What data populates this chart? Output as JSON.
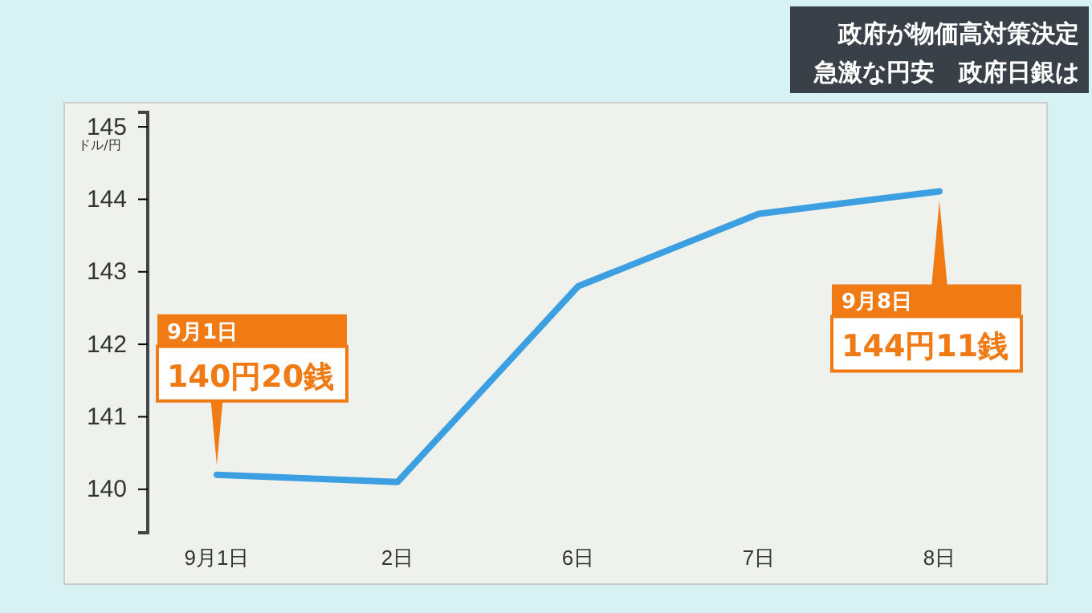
{
  "chart_data": {
    "type": "line",
    "title": "政府が物価高対策決定",
    "subtitle": "急激な円安　政府日銀は",
    "ylabel": "ドル/円",
    "categories": [
      "9月1日",
      "2日",
      "6日",
      "7日",
      "8日"
    ],
    "series": [
      {
        "color": "#3b9fe2",
        "values": [
          140.2,
          140.1,
          142.8,
          143.8,
          144.11
        ]
      }
    ],
    "ylim": [
      139.4,
      145.2
    ],
    "yticks": [
      140,
      141,
      142,
      143,
      144,
      145
    ],
    "grid": false,
    "marker": "none",
    "line_style": "solid",
    "annotations": [
      {
        "text": "9月1日 140円20銭",
        "x": "9月1日",
        "y": 140.2
      },
      {
        "text": "9月8日 144円11銭",
        "x": "8日",
        "y": 144.11
      }
    ]
  }
}
